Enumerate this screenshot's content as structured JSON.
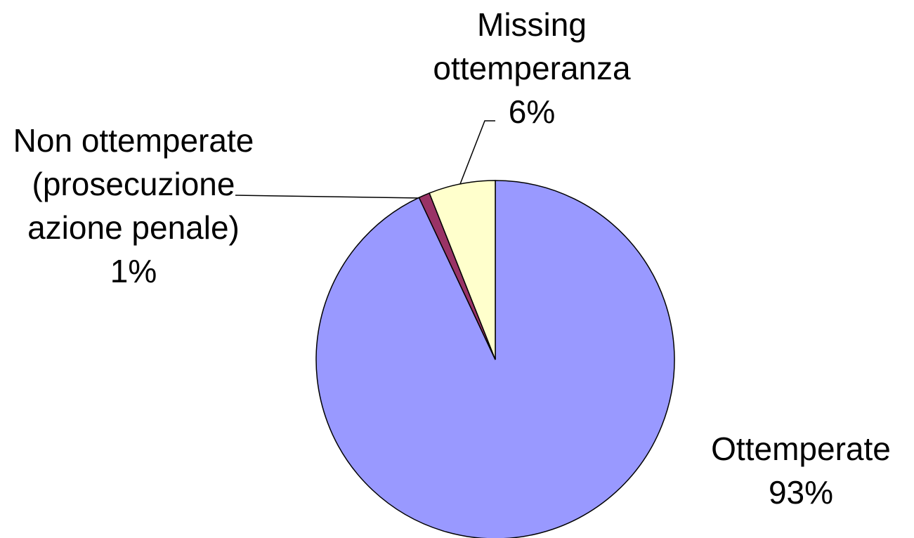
{
  "chart_data": {
    "type": "pie",
    "categories": [
      "Ottemperate",
      "Non ottemperate (prosecuzione azione penale)",
      "Missing ottemperanza"
    ],
    "values": [
      93,
      1,
      6
    ],
    "value_labels": [
      "93%",
      "1%",
      "6%"
    ],
    "colors": [
      "#9999ff",
      "#993366",
      "#ffffcc"
    ]
  }
}
